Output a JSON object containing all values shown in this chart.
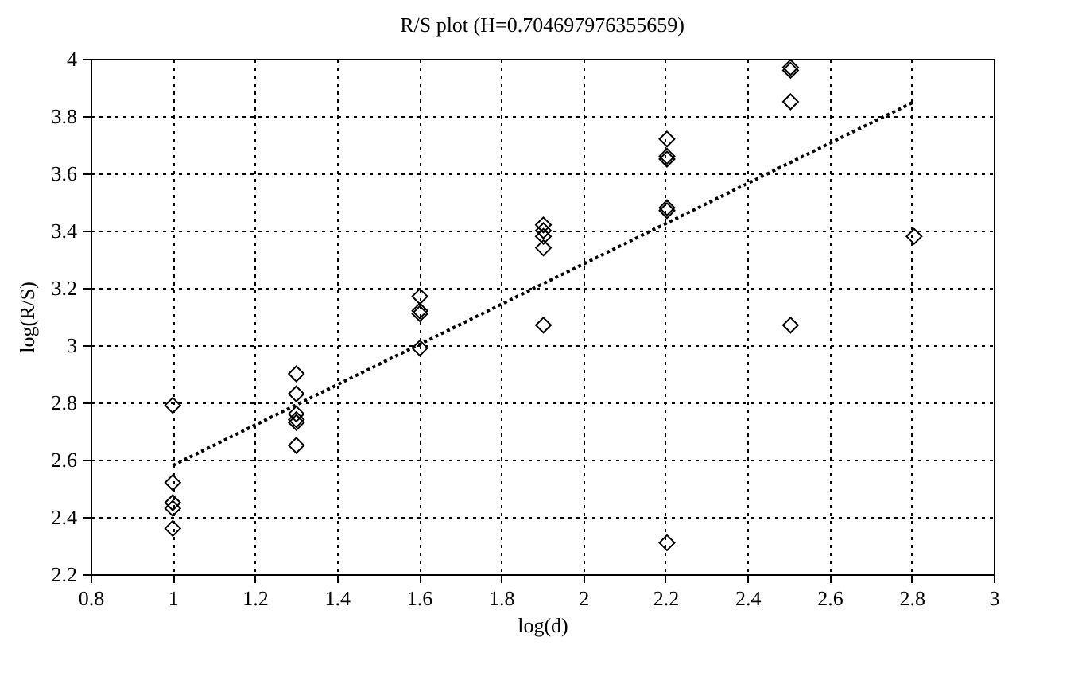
{
  "chart_data": {
    "type": "scatter",
    "title": "R/S plot (H=0.704697976355659)",
    "xlabel": "log(d)",
    "ylabel": "log(R/S)",
    "xlim": [
      0.8,
      3
    ],
    "ylim": [
      2.2,
      4
    ],
    "xticks": [
      0.8,
      1,
      1.2,
      1.4,
      1.6,
      1.8,
      2,
      2.2,
      2.4,
      2.6,
      2.8,
      3
    ],
    "yticks": [
      2.2,
      2.4,
      2.6,
      2.8,
      3,
      3.2,
      3.4,
      3.6,
      3.8,
      4
    ],
    "grid": true,
    "marker": "diamond",
    "series": [
      {
        "color": "#000000",
        "x": [
          1,
          1,
          1,
          1,
          1,
          1.301,
          1.301,
          1.301,
          1.301,
          1.301,
          1.301,
          1.602,
          1.602,
          1.602,
          1.602,
          1.903,
          1.903,
          1.903,
          1.903,
          1.903,
          2.204,
          2.204,
          2.204,
          2.204,
          2.204,
          2.204,
          2.505,
          2.505,
          2.505,
          2.505,
          2.806
        ],
        "values": [
          2.79,
          2.52,
          2.45,
          2.43,
          2.36,
          2.9,
          2.83,
          2.76,
          2.74,
          2.73,
          2.65,
          3.17,
          3.12,
          3.11,
          2.99,
          3.42,
          3.4,
          3.38,
          3.34,
          3.07,
          3.72,
          3.66,
          3.65,
          3.48,
          3.47,
          2.31,
          3.97,
          3.96,
          3.85,
          3.07,
          3.38
        ]
      },
      {
        "type": "line",
        "color": "#000000",
        "line_style": "dotted",
        "marker": "none",
        "x": [
          1,
          2.806
        ],
        "values": [
          2.58,
          3.85
        ]
      }
    ]
  }
}
